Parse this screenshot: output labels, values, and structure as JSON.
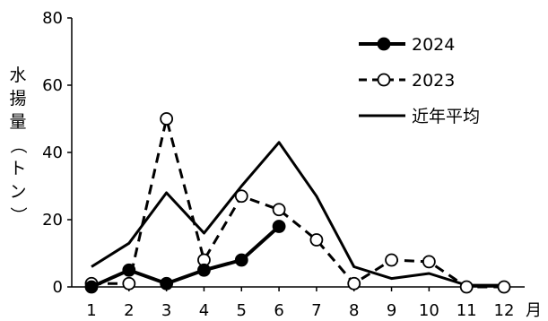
{
  "chart_data": {
    "type": "line",
    "title": "",
    "xlabel": "月",
    "ylabel": "水揚量（トン）",
    "xlim": [
      1,
      12
    ],
    "ylim": [
      0,
      80
    ],
    "yticks": [
      0,
      20,
      40,
      60,
      80
    ],
    "x": [
      1,
      2,
      3,
      4,
      5,
      6,
      7,
      8,
      9,
      10,
      11,
      12
    ],
    "grid": false,
    "legend_position": "top-right",
    "series": [
      {
        "name": "2024",
        "style": "solid-filled-marker",
        "color": "#000000",
        "values": [
          0,
          5,
          1,
          5,
          8,
          18,
          null,
          null,
          null,
          null,
          null,
          null
        ]
      },
      {
        "name": "2023",
        "style": "dashed-open-marker",
        "color": "#000000",
        "values": [
          1,
          1,
          50,
          8,
          27,
          23,
          14,
          1,
          8,
          7.5,
          0,
          0
        ]
      },
      {
        "name": "近年平均",
        "style": "solid-no-marker",
        "color": "#000000",
        "values": [
          6,
          13,
          28,
          16,
          30,
          43,
          27,
          6,
          2.5,
          4,
          0.5,
          0.5
        ]
      }
    ]
  }
}
